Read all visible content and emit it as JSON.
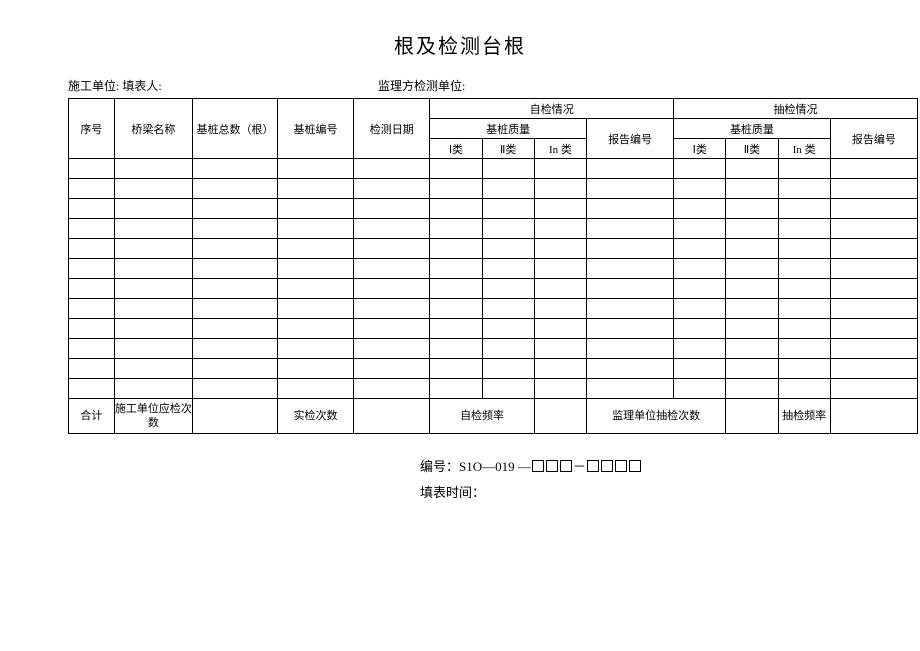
{
  "title": "根及检测台根",
  "meta": {
    "left_label": "施工单位:",
    "left_value": "填表人:",
    "right_label": "监理方检测单位:"
  },
  "header": {
    "seq": "序号",
    "bridge_name": "桥梁名称",
    "pile_total": "基桩总数（根）",
    "pile_no": "基桩编号",
    "test_date": "检测日期",
    "self_check": "自检情况",
    "spot_check": "抽检情况",
    "pile_quality": "基桩质量",
    "report_no": "报告编号",
    "class1": "Ⅰ类",
    "class2": "Ⅱ类",
    "class3": "In 类"
  },
  "footer": {
    "total": "合计",
    "c1": "施工单位应检次数",
    "c2": "实检次数",
    "c3": "自检频率",
    "c4": "监理单位抽检次数",
    "c5": "抽检频率"
  },
  "bottom": {
    "code_label": "编号：",
    "code_value": "S1O—019 —",
    "fill_time": "填表时间："
  },
  "empty_rows": 12,
  "colors": {
    "border": "#000000",
    "text": "#000000",
    "background": "#ffffff"
  }
}
